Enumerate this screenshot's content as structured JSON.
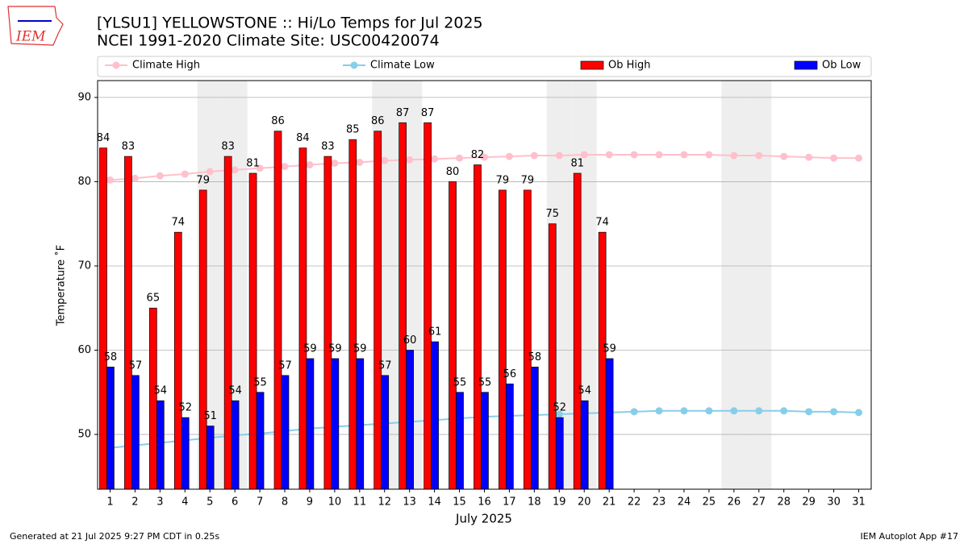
{
  "chart_data": {
    "type": "bar",
    "title": "[YLSU1] YELLOWSTONE :: Hi/Lo Temps for Jul 2025",
    "subtitle": "NCEI 1991-2020 Climate Site: USC00420074",
    "logo": "IEM",
    "x_label": "July 2025",
    "y_label": "Temperature ˚F",
    "footer_left": "Generated at 21 Jul 2025 9:27 PM CDT in 0.25s",
    "footer_right": "IEM Autoplot App #17",
    "x": [
      1,
      2,
      3,
      4,
      5,
      6,
      7,
      8,
      9,
      10,
      11,
      12,
      13,
      14,
      15,
      16,
      17,
      18,
      19,
      20,
      21,
      22,
      23,
      24,
      25,
      26,
      27,
      28,
      29,
      30,
      31
    ],
    "xlim": [
      0.5,
      31.5
    ],
    "xticks": [
      1,
      2,
      3,
      4,
      5,
      6,
      7,
      8,
      9,
      10,
      11,
      12,
      13,
      14,
      15,
      16,
      17,
      18,
      19,
      20,
      21,
      22,
      23,
      24,
      25,
      26,
      27,
      28,
      29,
      30,
      31
    ],
    "ylim": [
      43.5,
      92
    ],
    "yticks": [
      50,
      60,
      70,
      80,
      90
    ],
    "grid": true,
    "legend": "top",
    "shaded_days": [
      5,
      6,
      12,
      13,
      19,
      20,
      26,
      27
    ],
    "series": [
      {
        "name": "Climate High",
        "type": "line",
        "color": "#ffc0cb",
        "values": [
          80.2,
          80.4,
          80.7,
          80.9,
          81.2,
          81.4,
          81.6,
          81.8,
          82.0,
          82.2,
          82.3,
          82.5,
          82.6,
          82.7,
          82.8,
          82.9,
          83.0,
          83.1,
          83.1,
          83.2,
          83.2,
          83.2,
          83.2,
          83.2,
          83.2,
          83.1,
          83.1,
          83.0,
          82.9,
          82.8,
          82.8
        ]
      },
      {
        "name": "Climate Low",
        "type": "line",
        "color": "#87ceeb",
        "values": [
          48.4,
          48.7,
          49.0,
          49.3,
          49.6,
          49.9,
          50.1,
          50.4,
          50.7,
          50.9,
          51.1,
          51.3,
          51.5,
          51.7,
          51.9,
          52.1,
          52.2,
          52.3,
          52.4,
          52.5,
          52.6,
          52.7,
          52.8,
          52.8,
          52.8,
          52.8,
          52.8,
          52.8,
          52.7,
          52.7,
          52.6
        ]
      },
      {
        "name": "Ob High",
        "type": "bar",
        "color": "#ff0000",
        "values": [
          84,
          83,
          65,
          74,
          79,
          83,
          81,
          86,
          84,
          83,
          85,
          86,
          87,
          87,
          80,
          82,
          79,
          79,
          75,
          81,
          74,
          null,
          null,
          null,
          null,
          null,
          null,
          null,
          null,
          null,
          null
        ]
      },
      {
        "name": "Ob Low",
        "type": "bar",
        "color": "#0000ff",
        "values": [
          58,
          57,
          54,
          52,
          51,
          54,
          55,
          57,
          59,
          59,
          59,
          57,
          60,
          61,
          55,
          55,
          56,
          58,
          52,
          54,
          59,
          null,
          null,
          null,
          null,
          null,
          null,
          null,
          null,
          null,
          null
        ]
      }
    ]
  }
}
